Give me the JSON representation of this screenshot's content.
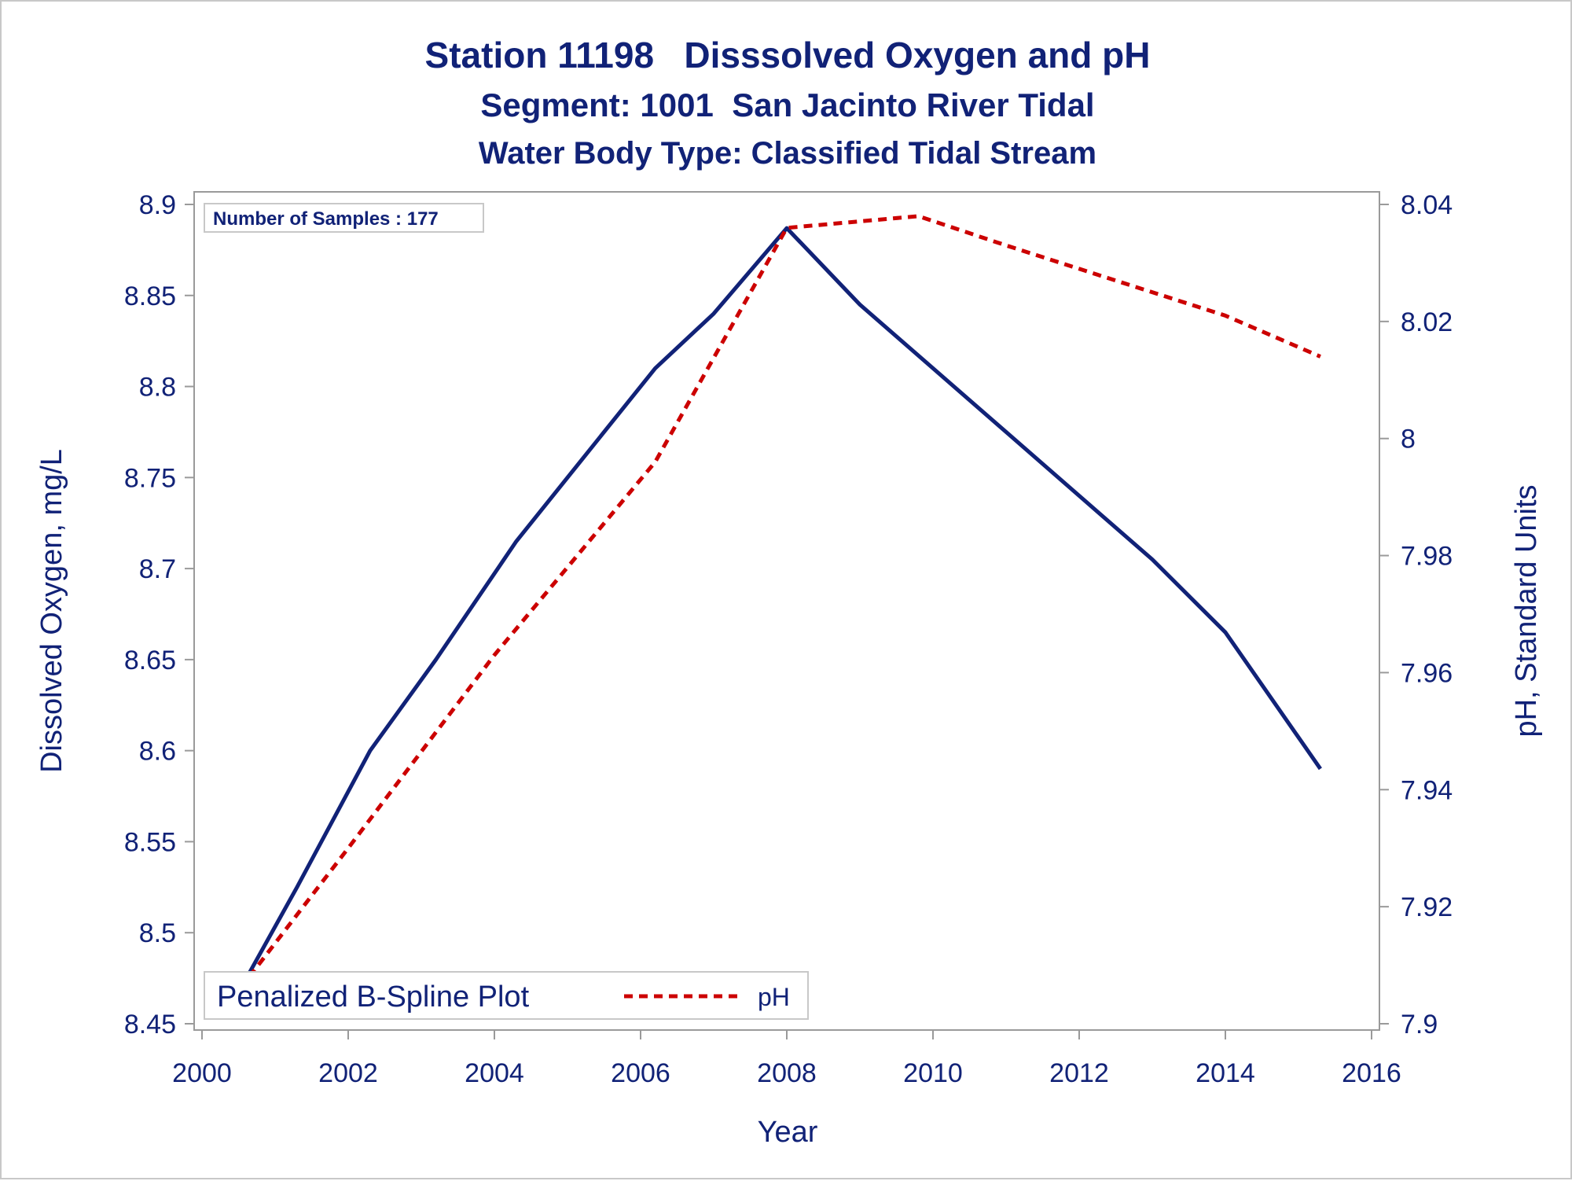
{
  "chart_data": {
    "type": "line",
    "title": "Station 11198   Disssolved Oxygen and pH",
    "subtitle": "Segment: 1001  San Jacinto River Tidal",
    "subtitle2": "Water Body Type: Classified Tidal Stream",
    "xlabel": "Year",
    "ylabel": "Dissolved Oxygen, mg/L",
    "y2label": "pH, Standard Units",
    "xlim": [
      2000,
      2016
    ],
    "ylim": [
      8.45,
      8.9
    ],
    "y2lim": [
      7.9,
      8.04
    ],
    "xticks": [
      "2000",
      "2002",
      "2004",
      "2006",
      "2008",
      "2010",
      "2012",
      "2014",
      "2016"
    ],
    "yticks": [
      "8.45",
      "8.5",
      "8.55",
      "8.6",
      "8.65",
      "8.7",
      "8.75",
      "8.8",
      "8.85",
      "8.9"
    ],
    "y2ticks": [
      "7.9",
      "7.92",
      "7.94",
      "7.96",
      "7.98",
      "8",
      "8.02",
      "8.04"
    ],
    "inset_label": "Number of Samples : 177",
    "grid": false,
    "legend_position": "bottom-left",
    "legend": {
      "title": "Penalized B-Spline Plot",
      "entries": [
        {
          "label": "pH",
          "style": "dashed",
          "color": "#cc0000"
        }
      ]
    },
    "series": [
      {
        "axis": "left",
        "color": "#112277",
        "style": "solid",
        "x": [
          2000.4,
          2001.3,
          2002.3,
          2003.2,
          2004.3,
          2005.2,
          2006.2,
          2007.0,
          2008.0,
          2009.0,
          2010.0,
          2011.0,
          2012.0,
          2013.0,
          2014.0,
          2015.3
        ],
        "values": [
          8.46,
          8.525,
          8.6,
          8.65,
          8.715,
          8.76,
          8.81,
          8.84,
          8.887,
          8.845,
          8.81,
          8.775,
          8.74,
          8.705,
          8.665,
          8.59
        ]
      },
      {
        "axis": "right",
        "name": "pH",
        "color": "#cc0000",
        "style": "dashed",
        "x": [
          2000.4,
          2002.0,
          2004.0,
          2006.2,
          2008.0,
          2009.8,
          2011.0,
          2012.5,
          2014.0,
          2015.3
        ],
        "values": [
          7.904,
          7.93,
          7.963,
          7.996,
          8.036,
          8.038,
          8.033,
          8.027,
          8.021,
          8.014
        ]
      }
    ]
  }
}
